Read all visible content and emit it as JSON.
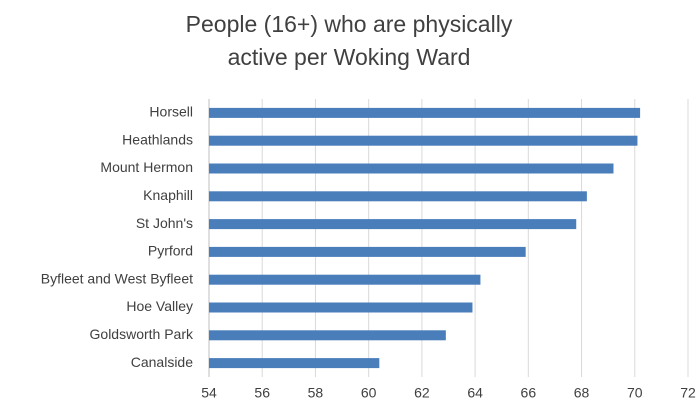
{
  "chart_data": {
    "type": "bar",
    "orientation": "horizontal",
    "title": "People (16+) who are physically active per Woking Ward",
    "categories": [
      "Horsell",
      "Heathlands",
      "Mount Hermon",
      "Knaphill",
      "St John's",
      "Pyrford",
      "Byfleet and West Byfleet",
      "Hoe Valley",
      "Goldsworth Park",
      "Canalside"
    ],
    "values": [
      70.2,
      70.1,
      69.2,
      68.2,
      67.8,
      65.9,
      64.2,
      63.9,
      62.9,
      60.4
    ],
    "color": "#4a7ebb",
    "xlim": [
      54,
      72
    ],
    "xticks": [
      54,
      56,
      58,
      60,
      62,
      64,
      66,
      68,
      70,
      72
    ],
    "grid": true
  }
}
